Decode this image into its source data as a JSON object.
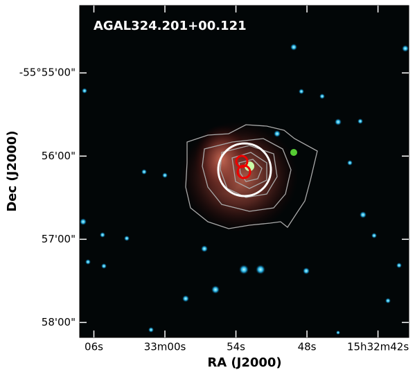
{
  "chart_data": {
    "type": "image",
    "title": "AGAL324.201+00.121",
    "xlabel": "RA (J2000)",
    "ylabel": "Dec (J2000)",
    "xlim": [
      67.2,
      39.4
    ],
    "xticks": [
      {
        "value": 66,
        "label": "06s"
      },
      {
        "value": 60,
        "label": "33m00s"
      },
      {
        "value": 54,
        "label": "54s"
      },
      {
        "value": 48,
        "label": "48s"
      },
      {
        "value": 42,
        "label": "15h32m42s"
      }
    ],
    "ylim": [
      58.18,
      54.19
    ],
    "yticks": [
      {
        "value": 55,
        "label": "-55°55'00\""
      },
      {
        "value": 56,
        "label": "56'00\""
      },
      {
        "value": 57,
        "label": "57'00\""
      },
      {
        "value": 58,
        "label": "58'00\""
      }
    ]
  }
}
